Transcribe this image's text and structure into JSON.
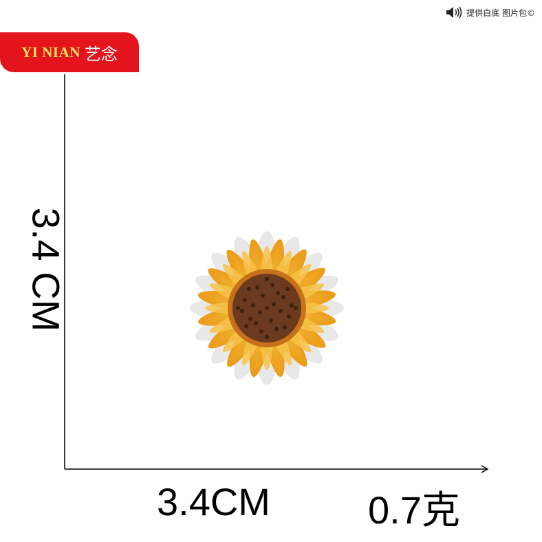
{
  "brand": {
    "latin": "YI NIAN",
    "chinese": "艺念",
    "color": "#e3141b"
  },
  "source_note": {
    "icon": "speaker-icon",
    "text": "提供白底 图片包©"
  },
  "dimensions": {
    "height": "3.4 CM",
    "width": "3.4CM",
    "weight": "0.7克"
  },
  "product": {
    "icon": "sunflower-patch-image",
    "colors": {
      "petal": "#f2a81c",
      "petal_light": "#f7c44a",
      "center": "#6b3a1f",
      "border": "#e8e8e8"
    }
  }
}
